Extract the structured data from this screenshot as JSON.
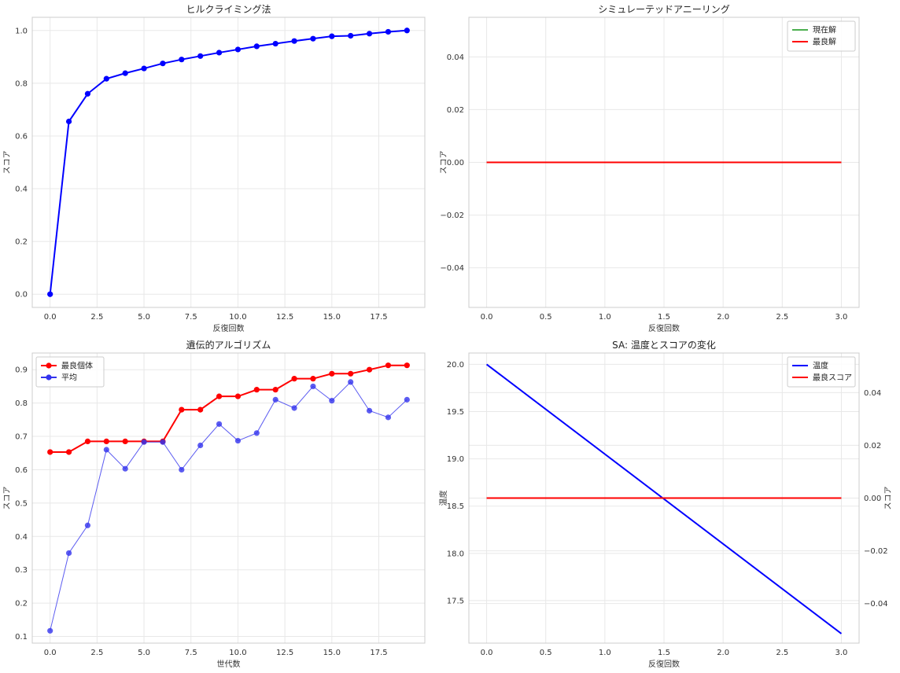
{
  "chart_data": [
    {
      "type": "line",
      "title": "ヒルクライミング法",
      "xlabel": "反復回数",
      "ylabel": "スコア",
      "xlim": [
        -0.95,
        19.95
      ],
      "ylim": [
        -0.05,
        1.05
      ],
      "xticks": [
        0.0,
        2.5,
        5.0,
        7.5,
        10.0,
        12.5,
        15.0,
        17.5
      ],
      "xtick_labels": [
        "0.0",
        "2.5",
        "5.0",
        "7.5",
        "10.0",
        "12.5",
        "15.0",
        "17.5"
      ],
      "yticks": [
        0.0,
        0.2,
        0.4,
        0.6,
        0.8,
        1.0
      ],
      "ytick_labels": [
        "0.0",
        "0.2",
        "0.4",
        "0.6",
        "0.8",
        "1.0"
      ],
      "grid": true,
      "series": [
        {
          "color": "#0000ff",
          "marker": "circle",
          "x": [
            0,
            1,
            2,
            3,
            4,
            5,
            6,
            7,
            8,
            9,
            10,
            11,
            12,
            13,
            14,
            15,
            16,
            17,
            18,
            19
          ],
          "y": [
            0.0,
            0.655,
            0.76,
            0.817,
            0.838,
            0.856,
            0.875,
            0.89,
            0.903,
            0.916,
            0.928,
            0.94,
            0.95,
            0.96,
            0.969,
            0.978,
            0.98,
            0.988,
            0.995,
            1.0
          ]
        }
      ]
    },
    {
      "type": "line",
      "title": "シミュレーテッドアニーリング",
      "xlabel": "反復回数",
      "ylabel": "スコア",
      "xlim": [
        -0.15,
        3.15
      ],
      "ylim": [
        -0.055,
        0.055
      ],
      "xticks": [
        0.0,
        0.5,
        1.0,
        1.5,
        2.0,
        2.5,
        3.0
      ],
      "xtick_labels": [
        "0.0",
        "0.5",
        "1.0",
        "1.5",
        "2.0",
        "2.5",
        "3.0"
      ],
      "yticks": [
        -0.04,
        -0.02,
        0.0,
        0.02,
        0.04
      ],
      "ytick_labels": [
        "−0.04",
        "−0.02",
        "0.00",
        "0.02",
        "0.04"
      ],
      "grid": true,
      "legend": "upper-right",
      "series": [
        {
          "name": "現在解",
          "color": "#4caf50",
          "x": [
            0,
            3
          ],
          "y": [
            0,
            0
          ]
        },
        {
          "name": "最良解",
          "color": "#ff0000",
          "x": [
            0,
            3
          ],
          "y": [
            0,
            0
          ]
        }
      ]
    },
    {
      "type": "line",
      "title": "遺伝的アルゴリズム",
      "xlabel": "世代数",
      "ylabel": "スコア",
      "xlim": [
        -0.95,
        19.95
      ],
      "ylim": [
        0.08,
        0.95
      ],
      "xticks": [
        0.0,
        2.5,
        5.0,
        7.5,
        10.0,
        12.5,
        15.0,
        17.5
      ],
      "xtick_labels": [
        "0.0",
        "2.5",
        "5.0",
        "7.5",
        "10.0",
        "12.5",
        "15.0",
        "17.5"
      ],
      "yticks": [
        0.1,
        0.2,
        0.3,
        0.4,
        0.5,
        0.6,
        0.7,
        0.8,
        0.9
      ],
      "ytick_labels": [
        "0.1",
        "0.2",
        "0.3",
        "0.4",
        "0.5",
        "0.6",
        "0.7",
        "0.8",
        "0.9"
      ],
      "grid": true,
      "legend": "upper-left",
      "series": [
        {
          "name": "最良個体",
          "color": "#ff0000",
          "marker": "circle",
          "x": [
            0,
            1,
            2,
            3,
            4,
            5,
            6,
            7,
            8,
            9,
            10,
            11,
            12,
            13,
            14,
            15,
            16,
            17,
            18,
            19
          ],
          "y": [
            0.653,
            0.653,
            0.685,
            0.685,
            0.685,
            0.685,
            0.685,
            0.78,
            0.78,
            0.82,
            0.82,
            0.84,
            0.84,
            0.873,
            0.873,
            0.888,
            0.888,
            0.9,
            0.913,
            0.913
          ]
        },
        {
          "name": "平均",
          "color": "#3333ee",
          "marker": "circle",
          "x": [
            0,
            1,
            2,
            3,
            4,
            5,
            6,
            7,
            8,
            9,
            10,
            11,
            12,
            13,
            14,
            15,
            16,
            17,
            18,
            19
          ],
          "y": [
            0.117,
            0.35,
            0.433,
            0.66,
            0.603,
            0.683,
            0.683,
            0.6,
            0.673,
            0.737,
            0.687,
            0.71,
            0.81,
            0.785,
            0.85,
            0.807,
            0.863,
            0.777,
            0.757,
            0.81
          ]
        }
      ]
    },
    {
      "type": "line",
      "title": "SA: 温度とスコアの変化",
      "xlabel": "反復回数",
      "ylabel": "温度",
      "ylabel_right": "スコア",
      "xlim": [
        -0.15,
        3.15
      ],
      "ylim": [
        17.05,
        20.12
      ],
      "ylim_right": [
        -0.055,
        0.055
      ],
      "xticks": [
        0.0,
        0.5,
        1.0,
        1.5,
        2.0,
        2.5,
        3.0
      ],
      "xtick_labels": [
        "0.0",
        "0.5",
        "1.0",
        "1.5",
        "2.0",
        "2.5",
        "3.0"
      ],
      "yticks": [
        17.5,
        18.0,
        18.5,
        19.0,
        19.5,
        20.0
      ],
      "ytick_labels": [
        "17.5",
        "18.0",
        "18.5",
        "19.0",
        "19.5",
        "20.0"
      ],
      "yticks_right": [
        -0.04,
        -0.02,
        0.0,
        0.02,
        0.04
      ],
      "ytick_labels_right": [
        "−0.04",
        "−0.02",
        "0.00",
        "0.02",
        "0.04"
      ],
      "grid": true,
      "legend": "upper-right",
      "series": [
        {
          "name": "温度",
          "color": "#0000ff",
          "axis": "left",
          "x": [
            0,
            3
          ],
          "y": [
            20.0,
            17.15
          ]
        },
        {
          "name": "最良スコア",
          "color": "#ff0000",
          "axis": "right",
          "x": [
            0,
            3
          ],
          "y": [
            0,
            0
          ]
        }
      ]
    }
  ],
  "colors": {
    "left_axis_label": "#0000ff",
    "right_axis_label": "#ff0000"
  }
}
